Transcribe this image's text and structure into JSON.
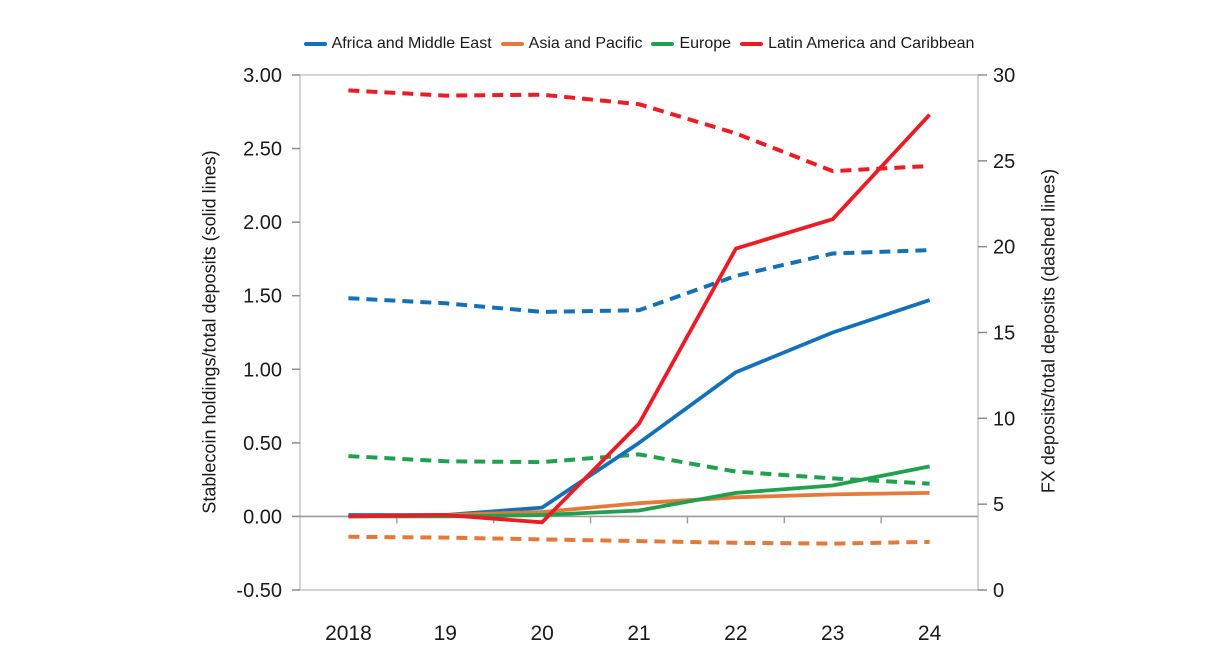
{
  "chart_data": {
    "type": "line",
    "title": "",
    "categories": [
      "2018",
      "19",
      "20",
      "21",
      "22",
      "23",
      "24"
    ],
    "grid": false,
    "legend_position": "top",
    "legend": [
      {
        "label": "Africa and Middle East",
        "color": "#1471B8"
      },
      {
        "label": "Asia and Pacific",
        "color": "#E5793A"
      },
      {
        "label": "Europe",
        "color": "#21A14F"
      },
      {
        "label": "Latin America and Caribbean",
        "color": "#EA1C25"
      }
    ],
    "left_axis": {
      "label": "Stablecoin holdings/total deposits (solid lines)",
      "min": -0.5,
      "max": 3.0,
      "step": 0.5,
      "tick_labels": [
        "3.00",
        "2.50",
        "2.00",
        "1.50",
        "1.00",
        "0.50",
        "0.00",
        "-0.50"
      ]
    },
    "right_axis": {
      "label": "FX deposits/total deposits (dashed lines)",
      "min": 0,
      "max": 30,
      "step": 5,
      "tick_labels": [
        "30",
        "25",
        "20",
        "15",
        "10",
        "5",
        "0"
      ]
    },
    "series": [
      {
        "name": "Africa and Middle East",
        "color": "#1471B8",
        "style": "solid",
        "axis": "left",
        "values": [
          0.01,
          0.01,
          0.06,
          0.5,
          0.98,
          1.25,
          1.47
        ]
      },
      {
        "name": "Asia and Pacific",
        "color": "#E5793A",
        "style": "solid",
        "axis": "left",
        "values": [
          0.0,
          0.01,
          0.03,
          0.09,
          0.13,
          0.15,
          0.16
        ]
      },
      {
        "name": "Europe",
        "color": "#21A14F",
        "style": "solid",
        "axis": "left",
        "values": [
          0.0,
          0.0,
          0.01,
          0.04,
          0.16,
          0.21,
          0.34
        ]
      },
      {
        "name": "Latin America and Caribbean",
        "color": "#EA1C25",
        "style": "solid",
        "axis": "left",
        "values": [
          0.0,
          0.01,
          -0.04,
          0.63,
          1.82,
          2.02,
          2.73
        ]
      },
      {
        "name": "Africa and Middle East",
        "color": "#1471B8",
        "style": "dashed",
        "axis": "right",
        "values": [
          17.0,
          16.7,
          16.2,
          16.3,
          18.3,
          19.6,
          19.8
        ]
      },
      {
        "name": "Asia and Pacific",
        "color": "#E5793A",
        "style": "dashed",
        "axis": "right",
        "values": [
          3.1,
          3.05,
          2.95,
          2.85,
          2.75,
          2.7,
          2.8
        ]
      },
      {
        "name": "Europe",
        "color": "#21A14F",
        "style": "dashed",
        "axis": "right",
        "values": [
          7.8,
          7.5,
          7.45,
          7.9,
          6.9,
          6.5,
          6.2
        ]
      },
      {
        "name": "Latin America and Caribbean",
        "color": "#EA1C25",
        "style": "dashed",
        "axis": "right",
        "values": [
          29.1,
          28.8,
          28.85,
          28.3,
          26.6,
          24.4,
          24.7
        ]
      }
    ],
    "style": {
      "plot_border_color": "#C6C6C6",
      "zero_axis_color": "#9B9B9B",
      "tick_color": "#8C8C8C",
      "solid_width": 3.8,
      "dashed_width": 4,
      "dash_pattern": "11,7"
    }
  }
}
